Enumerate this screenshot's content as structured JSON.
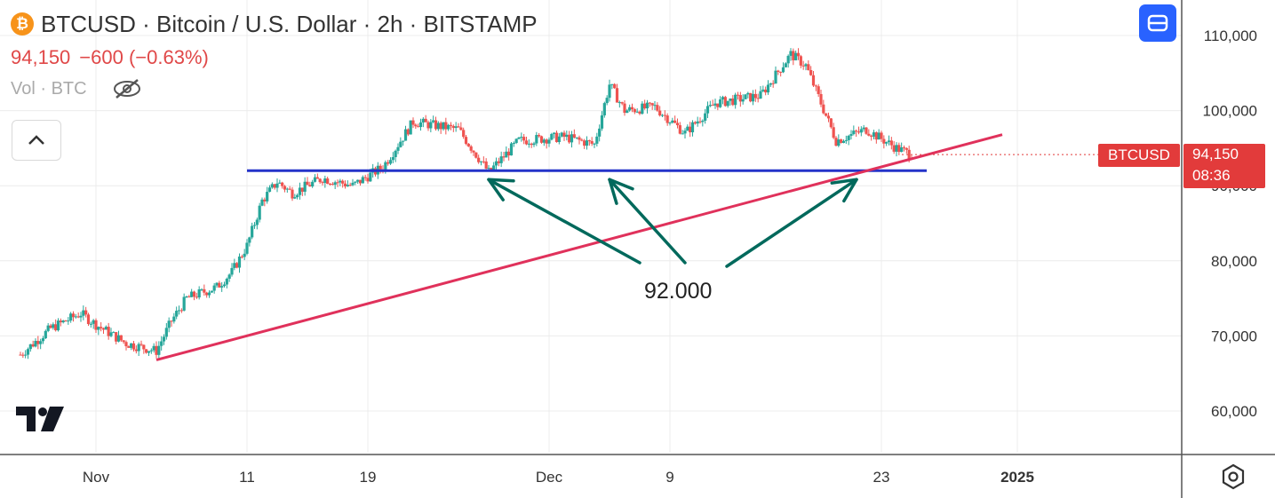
{
  "header": {
    "coin_symbol": "₿",
    "title": "BTCUSD · Bitcoin / U.S. Dollar · 2h · BITSTAMP",
    "price": "94,150",
    "change": "−600 (−0.63%)",
    "volume_label": "Vol · BTC"
  },
  "price_label": {
    "symbol": "BTCUSD",
    "price": "94,150",
    "countdown": "08:36"
  },
  "annotation": "92.000",
  "colors": {
    "up": "#26a69a",
    "down": "#ef5350",
    "support_line": "#2433c9",
    "trend_line": "#e0315b",
    "arrows": "#00695c",
    "price_tag": "#e23b3b",
    "accent": "#2962ff"
  },
  "icons": [
    "bitcoin-icon",
    "eye-slash-icon",
    "chevron-up-icon",
    "layout-icon",
    "tradingview-logo",
    "gear-icon"
  ],
  "chart_data": {
    "type": "candlestick",
    "timeframe": "2h",
    "x_tick_labels": [
      "Nov",
      "11",
      "19",
      "Dec",
      "9",
      "23",
      "2025"
    ],
    "y_tick_labels": [
      "110,000",
      "100,000",
      "90,000",
      "80,000",
      "70,000",
      "60,000"
    ],
    "ylim": [
      55000,
      115000
    ],
    "grid": true,
    "price_path": [
      [
        "2024-10-27",
        67500
      ],
      [
        "2024-10-29",
        71000
      ],
      [
        "2024-10-31",
        73000
      ],
      [
        "2024-11-01",
        71500
      ],
      [
        "2024-11-03",
        69000
      ],
      [
        "2024-11-05",
        68000
      ],
      [
        "2024-11-06",
        72000
      ],
      [
        "2024-11-07",
        75000
      ],
      [
        "2024-11-09",
        76500
      ],
      [
        "2024-11-10",
        78500
      ],
      [
        "2024-11-11",
        82000
      ],
      [
        "2024-11-12",
        88000
      ],
      [
        "2024-11-13",
        90500
      ],
      [
        "2024-11-14",
        89000
      ],
      [
        "2024-11-16",
        91000
      ],
      [
        "2024-11-18",
        90000
      ],
      [
        "2024-11-20",
        92500
      ],
      [
        "2024-11-22",
        98500
      ],
      [
        "2024-11-25",
        97500
      ],
      [
        "2024-11-27",
        91800
      ],
      [
        "2024-11-29",
        96000
      ],
      [
        "2024-12-02",
        96500
      ],
      [
        "2024-12-04",
        95500
      ],
      [
        "2024-12-05",
        103500
      ],
      [
        "2024-12-06",
        100000
      ],
      [
        "2024-12-08",
        100500
      ],
      [
        "2024-12-10",
        97000
      ],
      [
        "2024-12-12",
        101000
      ],
      [
        "2024-12-15",
        102000
      ],
      [
        "2024-12-17",
        107500
      ],
      [
        "2024-12-18",
        106000
      ],
      [
        "2024-12-19",
        101000
      ],
      [
        "2024-12-20",
        96000
      ],
      [
        "2024-12-22",
        97500
      ],
      [
        "2024-12-24",
        95000
      ],
      [
        "2024-12-25",
        94150
      ]
    ],
    "support_level": 92000,
    "support_line": {
      "from": [
        "2024-11-11",
        92000
      ],
      "to": [
        "2024-12-26",
        92000
      ]
    },
    "trend_line": {
      "from": [
        "2024-11-05",
        66800
      ],
      "to": [
        "2024-12-31",
        96800
      ]
    },
    "arrows_to": [
      [
        "2024-11-27",
        92000
      ],
      [
        "2024-12-05",
        92000
      ],
      [
        "2024-12-21",
        92000
      ]
    ],
    "current_price": 94150
  }
}
